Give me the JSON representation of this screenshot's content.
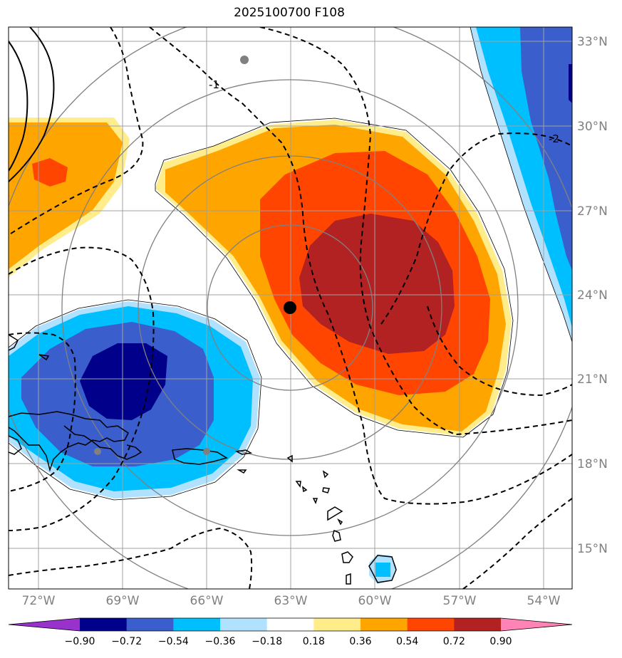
{
  "title": "2025100700 F108",
  "lat_labels": [
    "33°N",
    "30°N",
    "27°N",
    "24°N",
    "21°N",
    "18°N",
    "15°N"
  ],
  "lon_labels": [
    "72°W",
    "69°W",
    "66°W",
    "63°W",
    "60°W",
    "57°W",
    "54°W"
  ],
  "contour_labels": [
    "-1",
    "-2"
  ],
  "colorbar": {
    "colors": [
      "#9932cc",
      "#00008b",
      "#3a5fcd",
      "#00bfff",
      "#b0e2ff",
      "#ffffff",
      "#ffec8b",
      "#ffa500",
      "#ff4500",
      "#b22222",
      "#ff83b5"
    ],
    "labels": [
      "−0.90",
      "−0.72",
      "−0.54",
      "−0.36",
      "−0.18",
      "0.18",
      "0.36",
      "0.54",
      "0.72",
      "0.90"
    ]
  }
}
